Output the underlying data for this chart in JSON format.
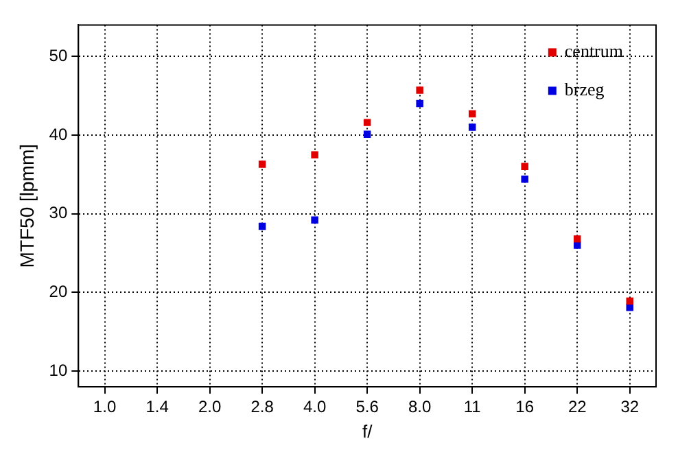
{
  "chart_data": {
    "type": "scatter",
    "xlabel": "f/",
    "ylabel": "MTF50 [lpmm]",
    "categories": [
      "1.0",
      "1.4",
      "2.0",
      "2.8",
      "4.0",
      "5.6",
      "8.0",
      "11",
      "16",
      "22",
      "32"
    ],
    "series": [
      {
        "name": "centrum",
        "color": "#e00000",
        "values": [
          null,
          null,
          null,
          36.3,
          37.5,
          41.6,
          45.7,
          42.7,
          36.0,
          26.8,
          18.9
        ]
      },
      {
        "name": "brzeg",
        "color": "#0000e0",
        "values": [
          null,
          null,
          null,
          28.4,
          29.2,
          40.1,
          44.0,
          41.0,
          34.4,
          26.0,
          18.1
        ]
      }
    ],
    "ylim": [
      8,
      54
    ],
    "yticks": [
      10,
      20,
      30,
      40,
      50
    ],
    "grid": true,
    "legend": "top right",
    "marker": "square"
  }
}
